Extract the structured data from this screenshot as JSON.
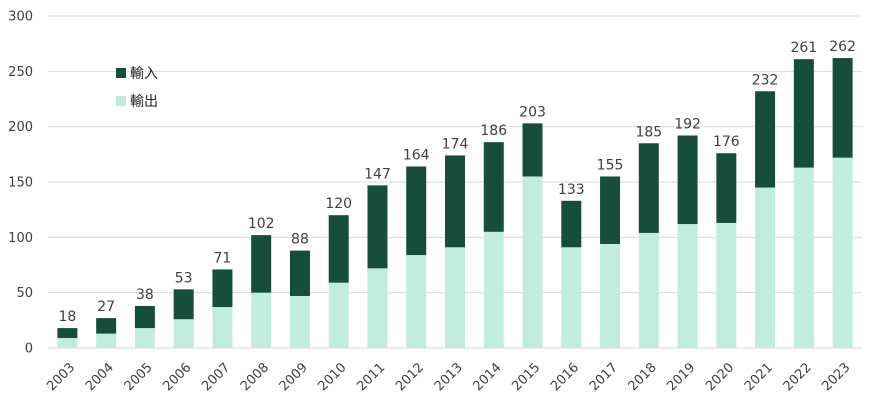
{
  "chart_data": {
    "type": "bar",
    "stacked": true,
    "categories": [
      "2003",
      "2004",
      "2005",
      "2006",
      "2007",
      "2008",
      "2009",
      "2010",
      "2011",
      "2012",
      "2013",
      "2014",
      "2015",
      "2016",
      "2017",
      "2018",
      "2019",
      "2020",
      "2021",
      "2022",
      "2023"
    ],
    "series": [
      {
        "name": "輸出",
        "color": "#c1ece0",
        "values": [
          9,
          13,
          18,
          26,
          37,
          50,
          47,
          59,
          72,
          84,
          91,
          105,
          155,
          91,
          94,
          104,
          112,
          113,
          145,
          163,
          172
        ]
      },
      {
        "name": "輸入",
        "color": "#174d3d",
        "values": [
          9,
          14,
          20,
          27,
          34,
          52,
          41,
          61,
          75,
          80,
          83,
          81,
          48,
          42,
          61,
          81,
          80,
          63,
          87,
          98,
          90
        ]
      }
    ],
    "totals": [
      18,
      27,
      38,
      53,
      71,
      102,
      88,
      120,
      147,
      164,
      174,
      186,
      203,
      133,
      155,
      185,
      192,
      176,
      232,
      261,
      262
    ],
    "ylim": [
      0,
      300
    ],
    "yticks": [
      0,
      50,
      100,
      150,
      200,
      250,
      300
    ],
    "grid": true,
    "legend": {
      "placement": "top-left",
      "order": [
        "輸入",
        "輸出"
      ]
    },
    "title": "",
    "xlabel": "",
    "ylabel": ""
  }
}
